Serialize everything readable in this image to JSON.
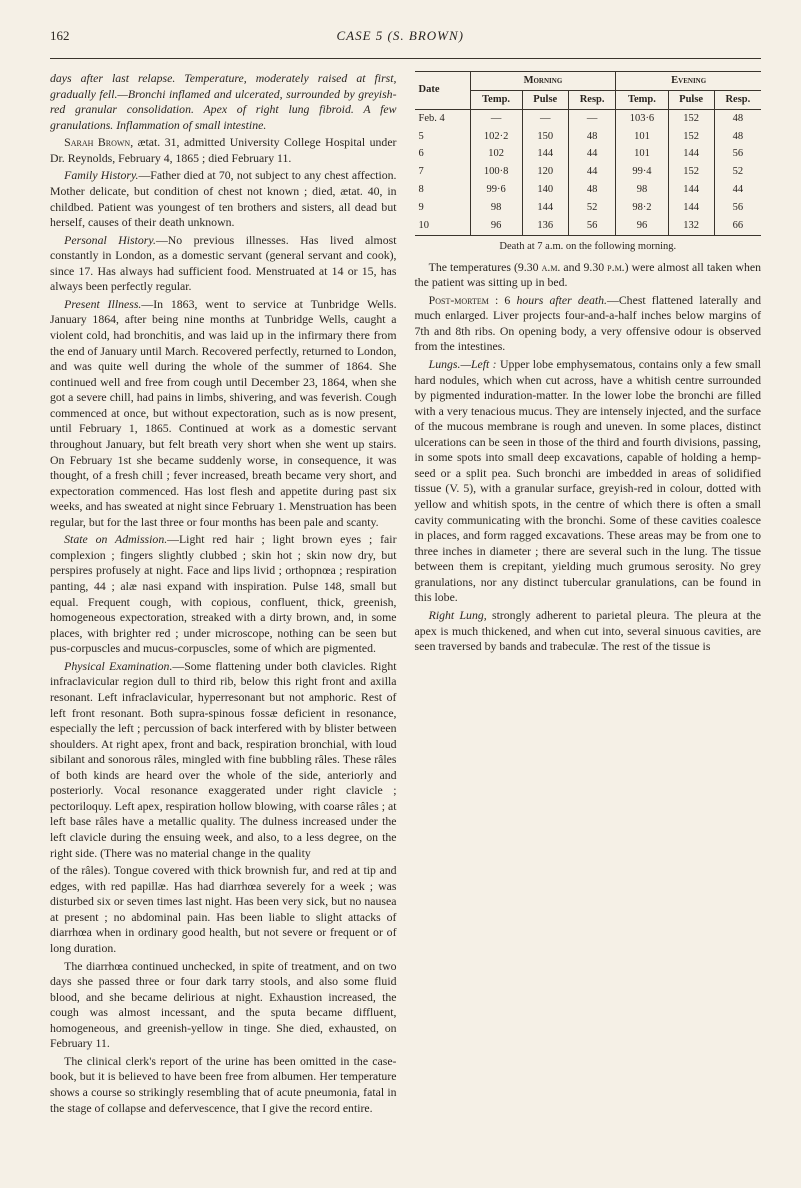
{
  "page_number": "162",
  "header_title": "CASE 5 (S. BROWN)",
  "col1": {
    "p1_a": "days after last relapse. Temperature, moderately raised at first, gradually fell.—Bronchi inflamed and ulcerated, surrounded by greyish-red granular consolidation. Apex of right lung fibroid. A few granulations. Inflammation of small intestine.",
    "p2": "Sarah Brown, ætat. 31, admitted University College Hospital under Dr. Reynolds, February 4, 1865 ; died February 11.",
    "p3_label": "Family History.",
    "p3": "—Father died at 70, not subject to any chest affection. Mother delicate, but condition of chest not known ; died, ætat. 40, in childbed. Patient was youngest of ten brothers and sisters, all dead but herself, causes of their death unknown.",
    "p4_label": "Personal History.",
    "p4": "—No previous illnesses. Has lived almost constantly in London, as a domestic servant (general servant and cook), since 17. Has always had sufficient food. Menstruated at 14 or 15, has always been perfectly regular.",
    "p5_label": "Present Illness.",
    "p5": "—In 1863, went to service at Tunbridge Wells. January 1864, after being nine months at Tunbridge Wells, caught a violent cold, had bronchitis, and was laid up in the infirmary there from the end of January until March. Recovered perfectly, returned to London, and was quite well during the whole of the summer of 1864. She continued well and free from cough until December 23, 1864, when she got a severe chill, had pains in limbs, shivering, and was feverish. Cough commenced at once, but without expectoration, such as is now present, until February 1, 1865. Continued at work as a domestic servant throughout January, but felt breath very short when she went up stairs. On February 1st she became suddenly worse, in consequence, it was thought, of a fresh chill ; fever increased, breath became very short, and expectoration commenced. Has lost flesh and appetite during past six weeks, and has sweated at night since February 1. Menstruation has been regular, but for the last three or four months has been pale and scanty.",
    "p6_label": "State on Admission.",
    "p6": "—Light red hair ; light brown eyes ; fair complexion ; fingers slightly clubbed ; skin hot ; skin now dry, but perspires profusely at night. Face and lips livid ; orthopnœa ; respiration panting, 44 ; alæ nasi expand with inspiration. Pulse 148, small but equal. Frequent cough, with copious, confluent, thick, greenish, homogeneous expectoration, streaked with a dirty brown, and, in some places, with brighter red ; under microscope, nothing can be seen but pus-corpuscles and mucus-corpuscles, some of which are pigmented.",
    "p7_label": "Physical Examination.",
    "p7": "—Some flattening under both clavicles. Right infraclavicular region dull to third rib, below this right front and axilla resonant. Left infraclavicular, hyperresonant but not amphoric. Rest of left front resonant. Both supra-spinous fossæ deficient in resonance, especially the left ; percussion of back interfered with by blister between shoulders. At right apex, front and back, respiration bronchial, with loud sibilant and sonorous râles, mingled with fine bubbling râles. These râles of both kinds are heard over the whole of the side, anteriorly and posteriorly. Vocal resonance exaggerated under right clavicle ; pectoriloquy. Left apex, respiration hollow blowing, with coarse râles ; at left base râles have a metallic quality. The dulness increased under the left clavicle during the ensuing week, and also, to a less degree, on the right side. (There was no material change in the quality"
  },
  "col2": {
    "p1": "of the râles). Tongue covered with thick brownish fur, and red at tip and edges, with red papillæ. Has had diarrhœa severely for a week ; was disturbed six or seven times last night. Has been very sick, but no nausea at present ; no abdominal pain. Has been liable to slight attacks of diarrhœa when in ordinary good health, but not severe or frequent or of long duration.",
    "p2": "The diarrhœa continued unchecked, in spite of treatment, and on two days she passed three or four dark tarry stools, and also some fluid blood, and she became delirious at night. Exhaustion increased, the cough was almost incessant, and the sputa became diffluent, homogeneous, and greenish-yellow in tinge. She died, exhausted, on February 11.",
    "p3": "The clinical clerk's report of the urine has been omitted in the case-book, but it is believed to have been free from albumen. Her temperature shows a course so strikingly resembling that of acute pneumonia, fatal in the stage of collapse and defervescence, that I give the record entire.",
    "table_caption": "Death at 7 a.m. on the following morning.",
    "p4_a": "The temperatures (9.30 ",
    "p4_am": "a.m.",
    "p4_b": " and 9.30 ",
    "p4_pm": "p.m.",
    "p4_c": ") were almost all taken when the patient was sitting up in bed.",
    "p5_label": "Post-mortem",
    "p5_a": " : 6 ",
    "p5_i": "hours after death.",
    "p5_b": "—Chest flattened laterally and much enlarged. Liver projects four-and-a-half inches below margins of 7th and 8th ribs. On opening body, a very offensive odour is observed from the intestines.",
    "p6_label": "Lungs.—Left :",
    "p6": " Upper lobe emphysematous, contains only a few small hard nodules, which when cut across, have a whitish centre surrounded by pigmented induration-matter. In the lower lobe the bronchi are filled with a very tenacious mucus. They are intensely injected, and the surface of the mucous membrane is rough and uneven. In some places, distinct ulcerations can be seen in those of the third and fourth divisions, passing, in some spots into small deep excavations, capable of holding a hemp-seed or a split pea. Such bronchi are imbedded in areas of solidified tissue (V. 5), with a granular surface, greyish-red in colour, dotted with yellow and whitish spots, in the centre of which there is often a small cavity communicating with the bronchi. Some of these cavities coalesce in places, and form ragged excavations. These areas may be from one to three inches in diameter ; there are several such in the lung. The tissue between them is crepitant, yielding much grumous serosity. No grey granulations, nor any distinct tubercular granulations, can be found in this lobe.",
    "p7_label": "Right Lung,",
    "p7": " strongly adherent to parietal pleura. The pleura at the apex is much thickened, and when cut into, several sinuous cavities, are seen traversed by bands and trabeculæ. The rest of the tissue is"
  },
  "table": {
    "head_date": "Date",
    "head_morning": "Morning",
    "head_evening": "Evening",
    "sub_temp": "Temp.",
    "sub_pulse": "Pulse",
    "sub_resp": "Resp.",
    "rows": [
      {
        "date": "Feb. 4",
        "mt": "—",
        "mp": "—",
        "mr": "—",
        "et": "103·6",
        "ep": "152",
        "er": "48"
      },
      {
        "date": "5",
        "mt": "102·2",
        "mp": "150",
        "mr": "48",
        "et": "101",
        "ep": "152",
        "er": "48"
      },
      {
        "date": "6",
        "mt": "102",
        "mp": "144",
        "mr": "44",
        "et": "101",
        "ep": "144",
        "er": "56"
      },
      {
        "date": "7",
        "mt": "100·8",
        "mp": "120",
        "mr": "44",
        "et": "99·4",
        "ep": "152",
        "er": "52"
      },
      {
        "date": "8",
        "mt": "99·6",
        "mp": "140",
        "mr": "48",
        "et": "98",
        "ep": "144",
        "er": "44"
      },
      {
        "date": "9",
        "mt": "98",
        "mp": "144",
        "mr": "52",
        "et": "98·2",
        "ep": "144",
        "er": "56"
      },
      {
        "date": "10",
        "mt": "96",
        "mp": "136",
        "mr": "56",
        "et": "96",
        "ep": "132",
        "er": "66"
      }
    ]
  }
}
